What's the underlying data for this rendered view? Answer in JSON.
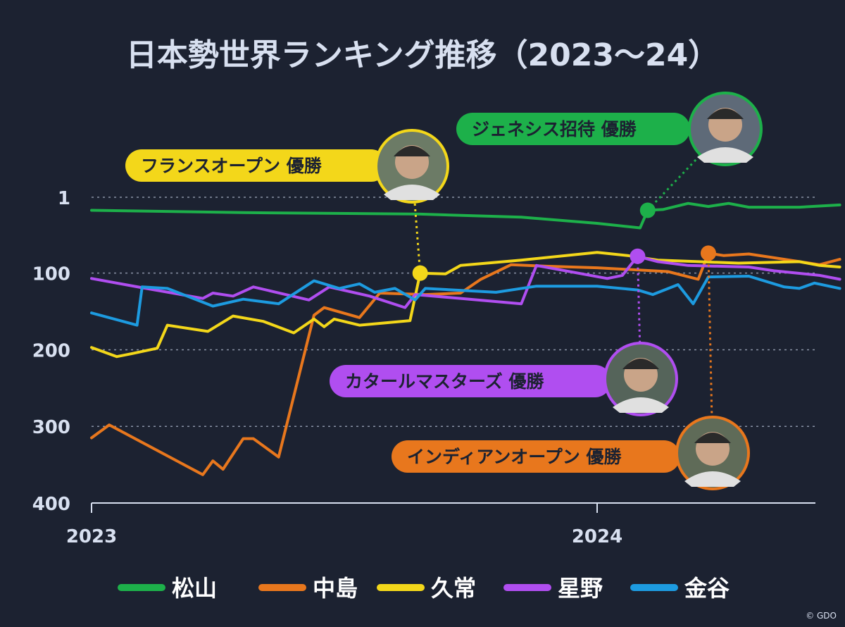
{
  "title": "日本勢世界ランキング推移（2023～24）",
  "credit": "© GDO",
  "colors": {
    "background": "#1c2231",
    "grid": "#8a93a6",
    "axis": "#d8e0f0",
    "text": "#d8e0f0"
  },
  "chart_data": {
    "type": "line",
    "title": "日本勢世界ランキング推移（2023～24）",
    "xlabel": "",
    "ylabel": "",
    "x_ticks": [
      "2023",
      "2024"
    ],
    "y_ticks": [
      1,
      100,
      200,
      300,
      400
    ],
    "ylim": [
      400,
      1
    ],
    "y_inverted": true,
    "x_range": [
      "2023-01",
      "2024-06"
    ],
    "grid": true,
    "legend_position": "bottom",
    "series": [
      {
        "name": "松山",
        "color": "#1db04a",
        "photo_bg": "#5e6a78",
        "points": [
          [
            2023.0,
            18
          ],
          [
            2023.3,
            21
          ],
          [
            2023.65,
            23
          ],
          [
            2023.85,
            27
          ],
          [
            2024.0,
            35
          ],
          [
            2024.085,
            41
          ],
          [
            2024.1,
            18
          ],
          [
            2024.13,
            17
          ],
          [
            2024.18,
            9
          ],
          [
            2024.22,
            13
          ],
          [
            2024.26,
            9
          ],
          [
            2024.3,
            14
          ],
          [
            2024.4,
            14
          ],
          [
            2024.48,
            11
          ]
        ]
      },
      {
        "name": "中島",
        "color": "#e8771d",
        "photo_bg": "#5f6b58",
        "points": [
          [
            2023.0,
            315
          ],
          [
            2023.035,
            298
          ],
          [
            2023.22,
            363
          ],
          [
            2023.24,
            345
          ],
          [
            2023.26,
            356
          ],
          [
            2023.3,
            316
          ],
          [
            2023.32,
            316
          ],
          [
            2023.37,
            340
          ],
          [
            2023.44,
            155
          ],
          [
            2023.46,
            145
          ],
          [
            2023.53,
            158
          ],
          [
            2023.57,
            126
          ],
          [
            2023.66,
            128
          ],
          [
            2023.73,
            126
          ],
          [
            2023.77,
            108
          ],
          [
            2023.83,
            89
          ],
          [
            2023.9,
            91
          ],
          [
            2024.0,
            93
          ],
          [
            2024.14,
            98
          ],
          [
            2024.2,
            108
          ],
          [
            2024.22,
            74
          ],
          [
            2024.25,
            77
          ],
          [
            2024.3,
            75
          ],
          [
            2024.35,
            80
          ],
          [
            2024.4,
            85
          ],
          [
            2024.44,
            89
          ],
          [
            2024.48,
            82
          ]
        ]
      },
      {
        "name": "久常",
        "color": "#f3d71a",
        "photo_bg": "#6c7b66",
        "points": [
          [
            2023.0,
            197
          ],
          [
            2023.05,
            209
          ],
          [
            2023.08,
            205
          ],
          [
            2023.13,
            198
          ],
          [
            2023.15,
            168
          ],
          [
            2023.23,
            176
          ],
          [
            2023.28,
            156
          ],
          [
            2023.34,
            163
          ],
          [
            2023.4,
            178
          ],
          [
            2023.44,
            160
          ],
          [
            2023.46,
            170
          ],
          [
            2023.48,
            160
          ],
          [
            2023.53,
            168
          ],
          [
            2023.63,
            162
          ],
          [
            2023.65,
            100
          ],
          [
            2023.7,
            101
          ],
          [
            2023.73,
            90
          ],
          [
            2023.85,
            83
          ],
          [
            2024.0,
            73
          ],
          [
            2024.06,
            77
          ],
          [
            2024.12,
            83
          ],
          [
            2024.2,
            85
          ],
          [
            2024.28,
            87
          ],
          [
            2024.4,
            85
          ],
          [
            2024.44,
            90
          ],
          [
            2024.48,
            92
          ]
        ]
      },
      {
        "name": "星野",
        "color": "#b04ef0",
        "photo_bg": "#55645a",
        "points": [
          [
            2023.0,
            107
          ],
          [
            2023.1,
            119
          ],
          [
            2023.22,
            133
          ],
          [
            2023.24,
            126
          ],
          [
            2023.28,
            130
          ],
          [
            2023.32,
            118
          ],
          [
            2023.43,
            135
          ],
          [
            2023.47,
            118
          ],
          [
            2023.55,
            130
          ],
          [
            2023.62,
            145
          ],
          [
            2023.64,
            128
          ],
          [
            2023.73,
            133
          ],
          [
            2023.85,
            140
          ],
          [
            2023.88,
            90
          ],
          [
            2024.02,
            107
          ],
          [
            2024.05,
            103
          ],
          [
            2024.08,
            78
          ],
          [
            2024.12,
            85
          ],
          [
            2024.18,
            90
          ],
          [
            2024.3,
            92
          ],
          [
            2024.35,
            97
          ],
          [
            2024.44,
            103
          ],
          [
            2024.48,
            108
          ]
        ]
      },
      {
        "name": "金谷",
        "color": "#1d9be0",
        "photo_bg": "#5e6a78",
        "points": [
          [
            2023.0,
            152
          ],
          [
            2023.09,
            168
          ],
          [
            2023.1,
            118
          ],
          [
            2023.15,
            120
          ],
          [
            2023.24,
            143
          ],
          [
            2023.3,
            134
          ],
          [
            2023.37,
            140
          ],
          [
            2023.44,
            110
          ],
          [
            2023.49,
            120
          ],
          [
            2023.53,
            114
          ],
          [
            2023.56,
            125
          ],
          [
            2023.6,
            120
          ],
          [
            2023.64,
            135
          ],
          [
            2023.66,
            120
          ],
          [
            2023.8,
            125
          ],
          [
            2023.88,
            117
          ],
          [
            2024.0,
            117
          ],
          [
            2024.08,
            122
          ],
          [
            2024.11,
            128
          ],
          [
            2024.16,
            115
          ],
          [
            2024.19,
            140
          ],
          [
            2024.22,
            105
          ],
          [
            2024.3,
            104
          ],
          [
            2024.37,
            118
          ],
          [
            2024.4,
            120
          ],
          [
            2024.43,
            113
          ],
          [
            2024.48,
            120
          ]
        ]
      }
    ],
    "annotations": [
      {
        "label": "フランスオープン 優勝",
        "series": "久常",
        "x": 2023.65,
        "y": 100
      },
      {
        "label": "ジェネシス招待 優勝",
        "series": "松山",
        "x": 2024.1,
        "y": 18
      },
      {
        "label": "カタールマスターズ 優勝",
        "series": "星野",
        "x": 2024.08,
        "y": 78
      },
      {
        "label": "インディアンオープン 優勝",
        "series": "中島",
        "x": 2024.22,
        "y": 74
      }
    ]
  }
}
